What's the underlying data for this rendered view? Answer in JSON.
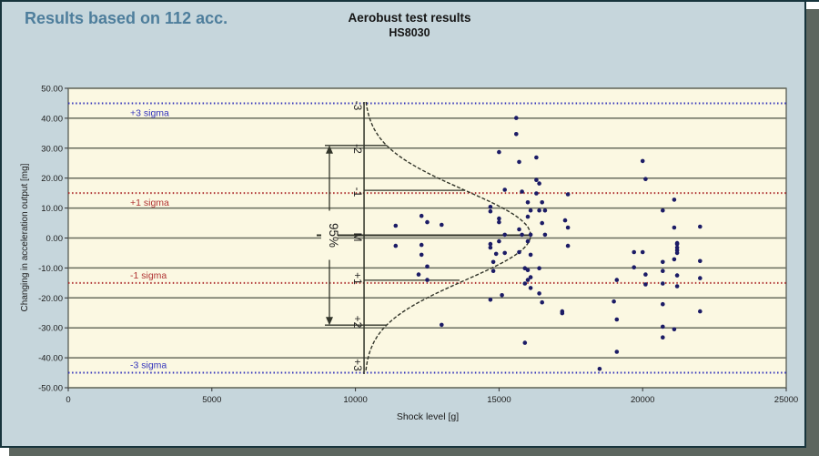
{
  "header": {
    "note": "Results based on 112 acc."
  },
  "title": {
    "line1": "Aerobust test results",
    "line2": "HS8030"
  },
  "colors": {
    "window_bg": "#c6d6dc",
    "plot_bg": "#fbf8e2",
    "grid": "#686c5e",
    "plot_border": "#4e524a",
    "point": "#1c1c66",
    "sigma_blue": "#3333bb",
    "sigma_red": "#b03333",
    "curve": "#32352a",
    "note_text": "#4e7e9c"
  },
  "chart_data": {
    "type": "scatter",
    "title": "Aerobust test results",
    "subtitle": "HS8030",
    "xlabel": "Shock level [g]",
    "ylabel": "Changing in acceleration output [mg]",
    "xlim": [
      0,
      25000
    ],
    "ylim": [
      -50,
      50
    ],
    "x_ticks": [
      "0",
      "5000",
      "10000",
      "15000",
      "20000",
      "25000"
    ],
    "y_ticks": [
      "50.00",
      "40.00",
      "30.00",
      "20.00",
      "10.00",
      "0.00",
      "-10.00",
      "-20.00",
      "-30.00",
      "-40.00",
      "-50.00"
    ],
    "grid": "horizontal",
    "legend": "none",
    "sigma_lines": [
      {
        "label": "+3 sigma",
        "value": 45,
        "color": "#3333bb"
      },
      {
        "label": "+1 sigma",
        "value": 15,
        "color": "#b03333"
      },
      {
        "label": "-1 sigma",
        "value": -15,
        "color": "#b03333"
      },
      {
        "label": "-3 sigma",
        "value": -45,
        "color": "#3333bb"
      }
    ],
    "distribution_overlay": {
      "axis_labels": [
        "-3",
        "-2",
        "-1",
        "M",
        "+1",
        "+2",
        "+3"
      ],
      "interval_label": "95%",
      "mean_shock_g": 10300,
      "sigma_mg": 15
    },
    "points": [
      [
        15600,
        40.1
      ],
      [
        15600,
        34.7
      ],
      [
        15000,
        28.7
      ],
      [
        15700,
        25.4
      ],
      [
        16300,
        26.9
      ],
      [
        16300,
        19.4
      ],
      [
        16400,
        18.2
      ],
      [
        15200,
        16.1
      ],
      [
        15800,
        15.5
      ],
      [
        16300,
        14.9
      ],
      [
        17400,
        14.6
      ],
      [
        14700,
        10.4
      ],
      [
        14700,
        8.9
      ],
      [
        16000,
        11.9
      ],
      [
        16500,
        11.9
      ],
      [
        16100,
        9.2
      ],
      [
        16400,
        9.2
      ],
      [
        16600,
        9.2
      ],
      [
        15000,
        6.5
      ],
      [
        15000,
        5.3
      ],
      [
        12300,
        7.4
      ],
      [
        12500,
        5.3
      ],
      [
        11400,
        4.1
      ],
      [
        13000,
        4.4
      ],
      [
        16000,
        7.1
      ],
      [
        16500,
        5.0
      ],
      [
        17300,
        5.9
      ],
      [
        17400,
        3.5
      ],
      [
        15700,
        2.9
      ],
      [
        16100,
        1.1
      ],
      [
        16600,
        1.1
      ],
      [
        11400,
        -2.6
      ],
      [
        12300,
        -2.3
      ],
      [
        12300,
        -5.6
      ],
      [
        12500,
        -9.5
      ],
      [
        12200,
        -12.2
      ],
      [
        12500,
        -14.0
      ],
      [
        14700,
        -2.0
      ],
      [
        14700,
        -3.2
      ],
      [
        15000,
        -1.1
      ],
      [
        15200,
        1.1
      ],
      [
        14900,
        -5.3
      ],
      [
        15200,
        -5.0
      ],
      [
        14800,
        -8.0
      ],
      [
        14800,
        -11.0
      ],
      [
        14700,
        -20.6
      ],
      [
        15100,
        -19.1
      ],
      [
        15700,
        -4.7
      ],
      [
        15800,
        1.1
      ],
      [
        15900,
        -10.1
      ],
      [
        16000,
        -10.7
      ],
      [
        16000,
        -1.1
      ],
      [
        16100,
        -5.6
      ],
      [
        15900,
        -15.2
      ],
      [
        16000,
        -14.0
      ],
      [
        16100,
        -13.1
      ],
      [
        16100,
        -16.7
      ],
      [
        16400,
        -10.1
      ],
      [
        16400,
        -18.5
      ],
      [
        16500,
        -21.5
      ],
      [
        17200,
        -24.5
      ],
      [
        17200,
        -25.1
      ],
      [
        17400,
        -2.6
      ],
      [
        15900,
        -35.0
      ],
      [
        13000,
        -29.0
      ],
      [
        20000,
        25.7
      ],
      [
        20100,
        19.7
      ],
      [
        21100,
        12.8
      ],
      [
        20700,
        9.2
      ],
      [
        21100,
        3.5
      ],
      [
        22000,
        3.8
      ],
      [
        19700,
        -4.7
      ],
      [
        20000,
        -4.7
      ],
      [
        21200,
        -1.7
      ],
      [
        21200,
        -2.0
      ],
      [
        21200,
        -3.2
      ],
      [
        21200,
        -4.1
      ],
      [
        21200,
        -5.0
      ],
      [
        20700,
        -8.0
      ],
      [
        21100,
        -7.1
      ],
      [
        22000,
        -7.7
      ],
      [
        19700,
        -9.8
      ],
      [
        20100,
        -12.2
      ],
      [
        20700,
        -11.0
      ],
      [
        21200,
        -12.5
      ],
      [
        19100,
        -14.0
      ],
      [
        20100,
        -15.5
      ],
      [
        20700,
        -15.2
      ],
      [
        21200,
        -16.1
      ],
      [
        22000,
        -13.4
      ],
      [
        19000,
        -21.2
      ],
      [
        20700,
        -22.1
      ],
      [
        22000,
        -24.5
      ],
      [
        19100,
        -27.2
      ],
      [
        20700,
        -29.6
      ],
      [
        21100,
        -30.5
      ],
      [
        20700,
        -33.2
      ],
      [
        19100,
        -38.0
      ],
      [
        18500,
        -43.7
      ]
    ]
  }
}
